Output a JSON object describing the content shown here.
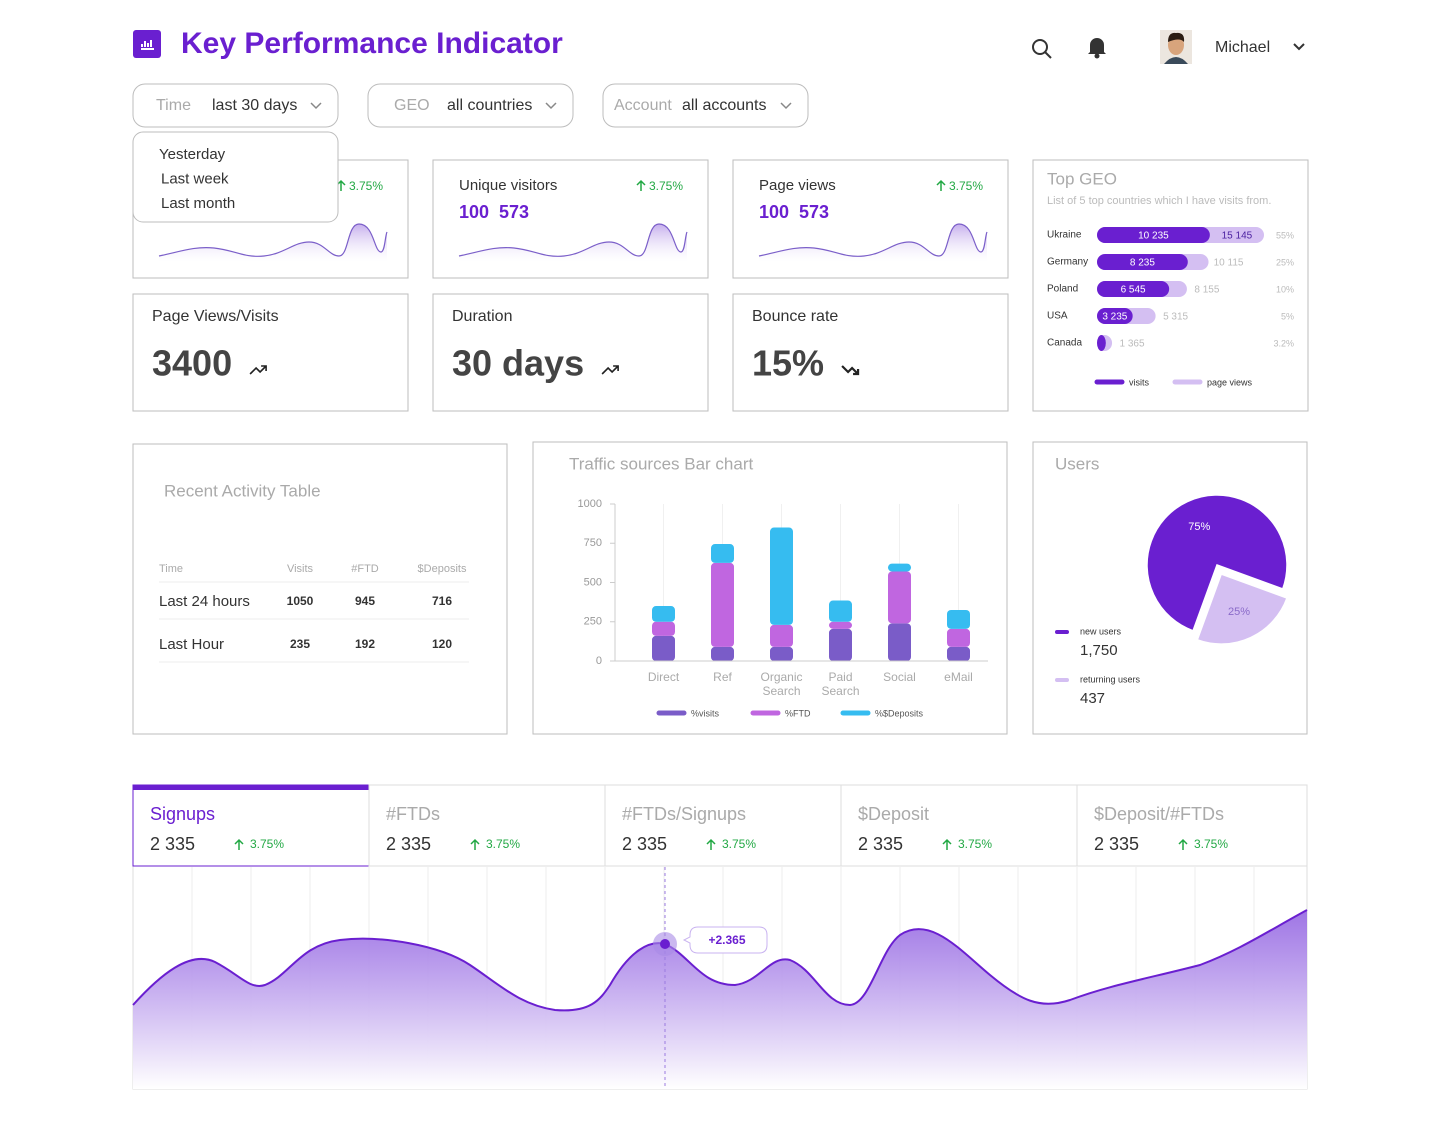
{
  "header": {
    "title": "Key Performance Indicator",
    "user": "Michael"
  },
  "filters": [
    {
      "label": "Time",
      "value": "last 30 days"
    },
    {
      "label": "GEO",
      "value": "all countries"
    },
    {
      "label": "Account",
      "value": "all accounts"
    }
  ],
  "time_menu": [
    "Yesterday",
    "Last week",
    "Last month"
  ],
  "kpi_cards": [
    {
      "change": "3.75%"
    },
    {
      "title": "Unique visitors",
      "value": "100  573",
      "change": "3.75%"
    },
    {
      "title": "Page views",
      "value": "100  573",
      "change": "3.75%"
    }
  ],
  "stat_cards": [
    {
      "title": "Page Views/Visits",
      "value": "3400",
      "trend": "up"
    },
    {
      "title": "Duration",
      "value": "30 days",
      "trend": "up"
    },
    {
      "title": "Bounce rate",
      "value": "15%",
      "trend": "down"
    }
  ],
  "top_geo": {
    "title": "Top GEO",
    "subtitle": "List of 5 top countries which I have visits from.",
    "chart": {
      "type": "bar",
      "orientation": "horizontal",
      "categories": [
        "Ukraine",
        "Germany",
        "Poland",
        "USA",
        "Canada"
      ],
      "series": [
        {
          "name": "visits",
          "color": "#6a1fd0",
          "values": [
            10235,
            8235,
            6545,
            3235,
            800
          ],
          "value_labels": [
            "10 235",
            "8 235",
            "6 545",
            "3 235",
            null
          ]
        },
        {
          "name": "page views",
          "color": "#d4bff2",
          "values": [
            15145,
            10115,
            8155,
            5315,
            1365
          ],
          "value_labels": [
            "15 145",
            "10 115",
            "8 155",
            "5 315",
            "1 365"
          ]
        }
      ],
      "shares": [
        "55%",
        "25%",
        "10%",
        "5%",
        "3.2%"
      ]
    }
  },
  "recent_activity": {
    "title": "Recent Activity Table",
    "columns": [
      "Time",
      "Visits",
      "#FTD",
      "$Deposits"
    ],
    "rows": [
      [
        "Last 24 hours",
        "1050",
        "945",
        "716"
      ],
      [
        "Last Hour",
        "235",
        "192",
        "120"
      ]
    ]
  },
  "traffic_sources": {
    "type": "bar",
    "stacked": true,
    "title": "Traffic sources Bar chart",
    "categories": [
      "Direct",
      "Ref",
      "Organic Search",
      "Paid Search",
      "Social",
      "eMail"
    ],
    "series": [
      {
        "name": "%visits",
        "color": "#7a5cc8",
        "values": [
          160,
          90,
          90,
          205,
          240,
          90
        ]
      },
      {
        "name": "%FTD",
        "color": "#c066e0",
        "values": [
          90,
          535,
          140,
          45,
          330,
          115
        ]
      },
      {
        "name": "%$Deposits",
        "color": "#36bcf0",
        "values": [
          100,
          120,
          620,
          135,
          50,
          120
        ]
      }
    ],
    "ylim": [
      0,
      1000
    ],
    "yticks": [
      0,
      250,
      500,
      750,
      1000
    ]
  },
  "users": {
    "type": "pie",
    "title": "Users",
    "categories": [
      "new users",
      "returning users"
    ],
    "values": [
      75,
      25
    ],
    "value_labels": [
      "75%",
      "25%"
    ],
    "colors": [
      "#6a1fd0",
      "#d4bff2"
    ],
    "counts": [
      "1,750",
      "437"
    ]
  },
  "metric_tabs": {
    "active": 0,
    "tabs": [
      {
        "name": "Signups",
        "value": "2 335",
        "change": "3.75%"
      },
      {
        "name": "#FTDs",
        "value": "2 335",
        "change": "3.75%"
      },
      {
        "name": "#FTDs/Signups",
        "value": "2 335",
        "change": "3.75%"
      },
      {
        "name": "$Deposit",
        "value": "2 335",
        "change": "3.75%"
      },
      {
        "name": "$Deposit/#FTDs",
        "value": "2 335",
        "change": "3.75%"
      }
    ],
    "tooltip": "+2.365"
  }
}
